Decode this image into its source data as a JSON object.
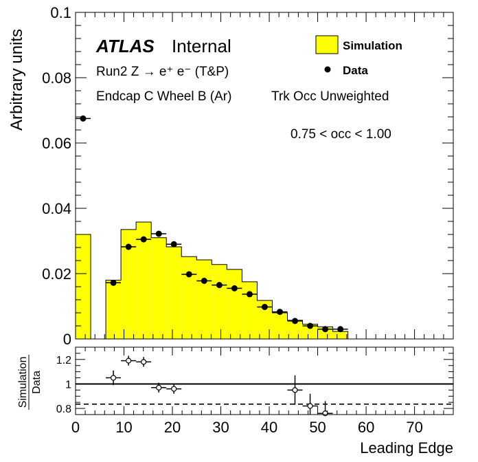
{
  "chart_data": [
    {
      "type": "bar",
      "panel": "main",
      "ylabel": "Arbitrary units",
      "xlim": [
        0,
        78
      ],
      "ylim": [
        0,
        0.1
      ],
      "y_ticks": [
        0,
        0.02,
        0.04,
        0.06,
        0.08,
        0.1
      ],
      "y_tick_labels": [
        "0",
        "0.02",
        "0.04",
        "0.06",
        "0.08",
        "0.1"
      ],
      "annotations": {
        "atlas": "ATLAS",
        "internal": "Internal",
        "process": "Run2 Z → e⁺ e⁻ (T&P)",
        "region": "Endcap C Wheel B (Ar)",
        "weighting": "Trk Occ Unweighted",
        "cut": "0.75 < occ < 1.00"
      },
      "legend_placement": "top-right",
      "series": [
        {
          "name": "Simulation",
          "style": "filled-histogram",
          "color": "#ffff00",
          "bin_edges": [
            0,
            3.125,
            6.25,
            9.375,
            12.5,
            15.625,
            18.75,
            21.875,
            25,
            28.125,
            31.25,
            34.375,
            37.5,
            40.625,
            43.75,
            46.875,
            50,
            53.125,
            56.25
          ],
          "values": [
            0.032,
            0.0,
            0.018,
            0.0335,
            0.0358,
            0.031,
            0.0282,
            0.0252,
            0.0242,
            0.0228,
            0.0213,
            0.0175,
            0.0118,
            0.008,
            0.0057,
            0.0045,
            0.0037,
            0.0023
          ]
        },
        {
          "name": "Data",
          "style": "markers",
          "color": "#000000",
          "x": [
            1.56,
            7.81,
            10.94,
            14.06,
            17.19,
            20.31,
            23.44,
            26.56,
            29.69,
            32.81,
            35.94,
            39.06,
            42.19,
            45.31,
            48.44,
            51.56,
            54.69
          ],
          "y": [
            0.0675,
            0.0172,
            0.0282,
            0.0305,
            0.0322,
            0.029,
            0.0198,
            0.0178,
            0.0165,
            0.0155,
            0.0137,
            0.0098,
            0.0083,
            0.0055,
            0.004,
            0.003,
            0.003
          ],
          "x_half_width": 1.5625
        }
      ]
    },
    {
      "type": "scatter",
      "panel": "ratio",
      "ylabel_top": "Simulation",
      "ylabel_bottom": "Data",
      "xlabel": "Leading Edge",
      "xlim": [
        0,
        78
      ],
      "ylim": [
        0.75,
        1.3
      ],
      "y_ticks": [
        0.8,
        1,
        1.2
      ],
      "y_tick_labels": [
        "0.8",
        "1",
        "1.2"
      ],
      "x_ticks": [
        0,
        10,
        20,
        30,
        40,
        50,
        60,
        70
      ],
      "x_tick_labels": [
        "0",
        "10",
        "20",
        "30",
        "40",
        "50",
        "60",
        "70"
      ],
      "reference_lines": [
        {
          "y": 1.0,
          "style": "solid"
        },
        {
          "y": 0.835,
          "style": "dashed"
        }
      ],
      "points": [
        {
          "x": 7.81,
          "y": 1.05,
          "err": 0.06
        },
        {
          "x": 10.94,
          "y": 1.19,
          "err": 0.04
        },
        {
          "x": 14.06,
          "y": 1.18,
          "err": 0.04
        },
        {
          "x": 17.19,
          "y": 0.97,
          "err": 0.04
        },
        {
          "x": 20.31,
          "y": 0.96,
          "err": 0.04
        },
        {
          "x": 45.31,
          "y": 0.95,
          "err": 0.12
        },
        {
          "x": 48.44,
          "y": 0.82,
          "err": 0.1
        },
        {
          "x": 51.56,
          "y": 0.76,
          "err": 0.1
        }
      ],
      "x_half_width": 1.5625
    }
  ]
}
